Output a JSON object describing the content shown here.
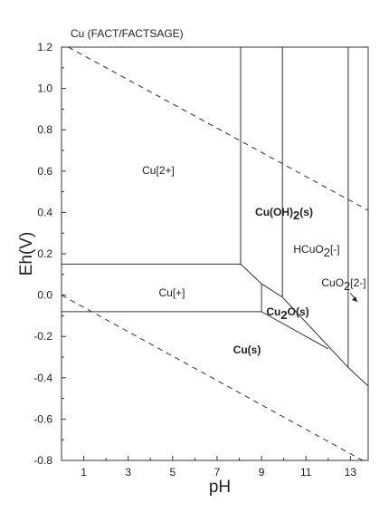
{
  "chart_data": {
    "type": "line",
    "title": "Cu (FACT/FACTSAGE)",
    "x_label": "pH",
    "y_label": "Eh(V)",
    "xlim": [
      0,
      13.8
    ],
    "ylim": [
      -0.8,
      1.2
    ],
    "xticks": [
      1,
      3,
      5,
      7,
      9,
      11,
      13
    ],
    "xminorticks": [
      2,
      4,
      6,
      8,
      10,
      12
    ],
    "yticks": [
      {
        "value": 1.2,
        "label": "1.2"
      },
      {
        "value": 1,
        "label": "1.0"
      },
      0.8,
      0.6,
      0.4,
      0.2,
      {
        "value": 0,
        "label": "0.0"
      },
      -0.2,
      -0.4,
      -0.6,
      -0.8
    ],
    "yminorticks": [
      1.1,
      0.9,
      0.7,
      0.5,
      0.3,
      0.1,
      -0.1,
      -0.3,
      -0.5,
      -0.7
    ],
    "color": "#333333",
    "series": [
      {
        "dash": true,
        "x": [
          0.3,
          13.8
        ],
        "values": [
          1.2,
          0.41
        ]
      },
      {
        "dash": true,
        "x": [
          0,
          13.55
        ],
        "values": [
          0,
          -0.8
        ]
      },
      {
        "dash": false,
        "x": [
          0,
          8.06,
          8.06
        ],
        "values": [
          0.15,
          0.15,
          1.2
        ]
      },
      {
        "dash": false,
        "x": [
          8.06,
          9.0,
          9.94,
          12.9,
          13.8
        ],
        "values": [
          0.15,
          0.055,
          -0.01,
          -0.35,
          -0.44
        ]
      },
      {
        "dash": false,
        "x": [
          9.0,
          9.0
        ],
        "values": [
          0.055,
          -0.08
        ]
      },
      {
        "dash": false,
        "x": [
          0,
          9.0,
          12.0
        ],
        "values": [
          -0.08,
          -0.08,
          -0.26
        ]
      },
      {
        "dash": false,
        "x": [
          9.94,
          9.94
        ],
        "values": [
          1.2,
          -0.01
        ]
      },
      {
        "dash": false,
        "x": [
          12.9,
          12.9
        ],
        "values": [
          1.2,
          -0.35
        ]
      }
    ],
    "annotations": [
      {
        "bold": false,
        "parts": [
          {
            "text": "Cu[2+]",
            "sub": false
          }
        ]
      },
      {
        "bold": true,
        "parts": [
          {
            "text": "Cu(OH)",
            "sub": false
          },
          {
            "text": "2",
            "sub": true
          },
          {
            "text": "(s)",
            "sub": false
          }
        ]
      },
      {
        "bold": false,
        "parts": [
          {
            "text": "HCuO",
            "sub": false
          },
          {
            "text": "2",
            "sub": true
          },
          {
            "text": "[-]",
            "sub": false
          }
        ]
      },
      {
        "bold": false,
        "parts": [
          {
            "text": "CuO",
            "sub": false
          },
          {
            "text": "2",
            "sub": true
          },
          {
            "text": "[2-]",
            "sub": false
          }
        ]
      },
      {
        "bold": false,
        "parts": [
          {
            "text": "Cu[+]",
            "sub": false
          }
        ]
      },
      {
        "bold": true,
        "parts": [
          {
            "text": "Cu",
            "sub": false
          },
          {
            "text": "2",
            "sub": true
          },
          {
            "text": "O(s)",
            "sub": false
          }
        ]
      },
      {
        "bold": true,
        "parts": [
          {
            "text": "Cu(s)",
            "sub": false
          }
        ]
      }
    ]
  }
}
